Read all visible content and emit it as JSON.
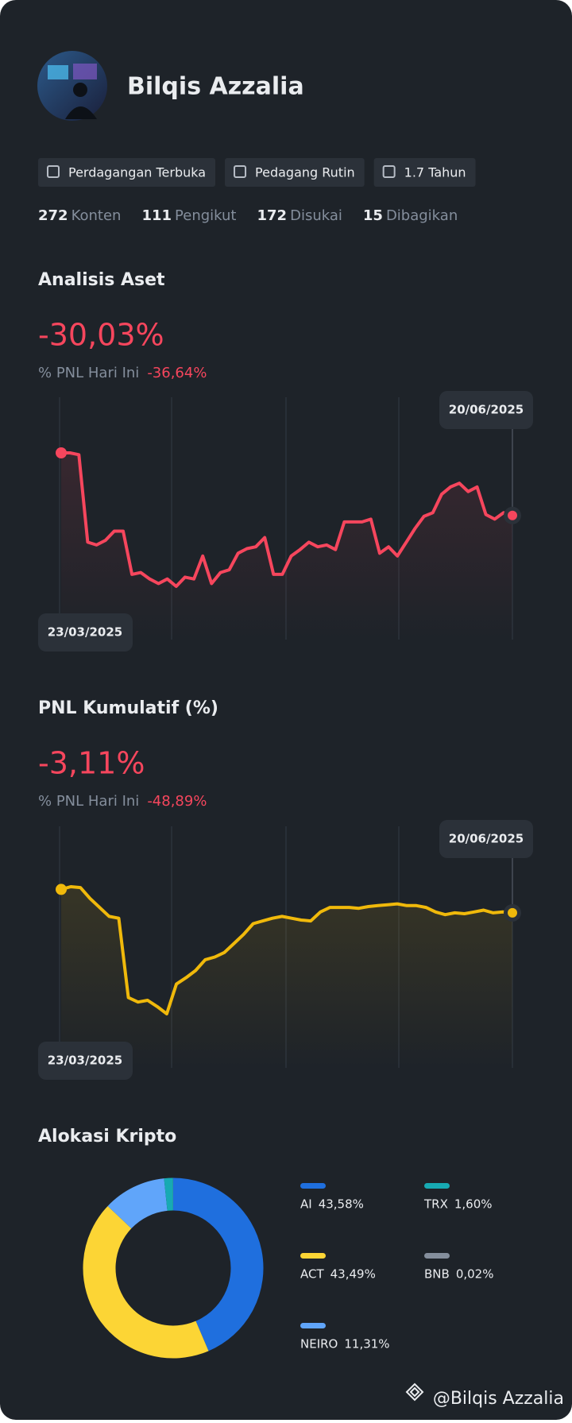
{
  "profile": {
    "name": "Bilqis Azzalia",
    "tags": [
      "Perdagangan Terbuka",
      "Pedagang Rutin",
      "1.7 Tahun"
    ],
    "stats": [
      {
        "value": 272,
        "label": "Konten"
      },
      {
        "value": 111,
        "label": "Pengikut"
      },
      {
        "value": 172,
        "label": "Disukai"
      },
      {
        "value": 15,
        "label": "Dibagikan"
      }
    ]
  },
  "charts": [
    {
      "type": "line",
      "title": "Analisis Aset",
      "headline": "-30,03%",
      "subtitle": "% PNL Hari Ini",
      "subtitle_value": "-36,64%",
      "start_date": "23/03/2025",
      "end_date": "20/06/2025",
      "color": "#f6465d",
      "values": [
        -9.63,
        -9.63,
        -10.23,
        -38.73,
        -39.63,
        -38.13,
        -35.13,
        -35.13,
        -49.23,
        -48.63,
        -50.73,
        -52.23,
        -50.73,
        -53.13,
        -50.13,
        -50.73,
        -43.23,
        -52.23,
        -48.63,
        -47.73,
        -42.33,
        -40.83,
        -40.23,
        -37.23,
        -49.23,
        -49.23,
        -43.23,
        -41.13,
        -38.73,
        -40.23,
        -39.63,
        -41.13,
        -32.13,
        -32.13,
        -32.13,
        -31.23,
        -42.33,
        -40.23,
        -43.23,
        -38.73,
        -34.23,
        -30.33,
        -29.13,
        -23.13,
        -20.73,
        -19.53,
        -22.23,
        -20.73,
        -29.73,
        -31.23,
        -29.13,
        -30.03
      ]
    },
    {
      "type": "line",
      "title": "PNL Kumulatif (%)",
      "headline": "-3,11%",
      "subtitle": "% PNL Hari Ini",
      "subtitle_value": "-48,89%",
      "start_date": "23/03/2025",
      "end_date": "20/06/2025",
      "color": "#f0b90b",
      "values": [
        0.79,
        1.24,
        1.09,
        -0.71,
        -2.21,
        -3.71,
        -4.01,
        -17.21,
        -17.96,
        -17.66,
        -18.71,
        -19.91,
        -14.96,
        -13.91,
        -12.71,
        -10.91,
        -10.46,
        -9.71,
        -8.21,
        -6.71,
        -4.91,
        -4.46,
        -4.01,
        -3.71,
        -4.01,
        -4.31,
        -4.46,
        -2.96,
        -2.21,
        -2.21,
        -2.21,
        -2.36,
        -2.06,
        -1.91,
        -1.76,
        -1.61,
        -1.91,
        -1.91,
        -2.21,
        -2.96,
        -3.41,
        -3.11,
        -3.26,
        -2.96,
        -2.66,
        -3.11,
        -2.96,
        -3.11
      ]
    }
  ],
  "allocation": {
    "type": "donut",
    "title": "Alokasi Kripto",
    "series": [
      {
        "name": "AI",
        "color": "#1f6fde",
        "value": 43.58,
        "value_label": "43,58%"
      },
      {
        "name": "ACT",
        "color": "#fcd535",
        "value": 43.49,
        "value_label": "43,49%"
      },
      {
        "name": "NEIRO",
        "color": "#60a5fa",
        "value": 11.31,
        "value_label": "11,31%"
      },
      {
        "name": "TRX",
        "color": "#17aab3",
        "value": 1.6,
        "value_label": "1,60%"
      },
      {
        "name": "BNB",
        "color": "#848e9c",
        "value": 0.02,
        "value_label": "0,02%"
      }
    ]
  },
  "footer": "@Bilqis Azzalia"
}
